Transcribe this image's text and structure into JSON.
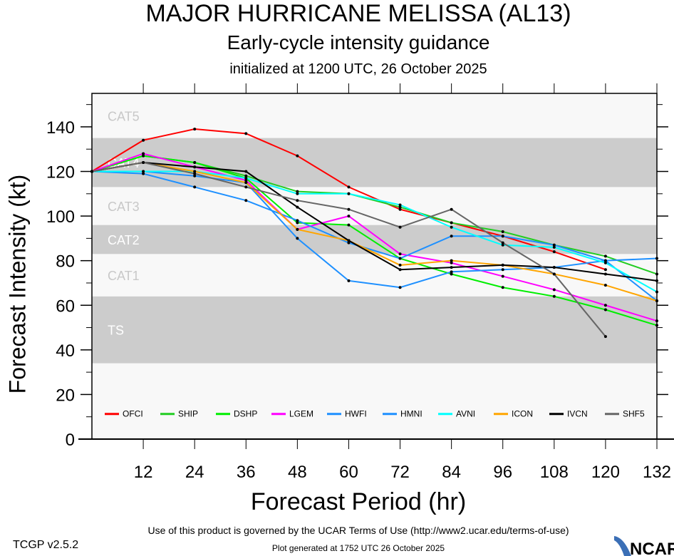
{
  "header": {
    "title": "MAJOR HURRICANE MELISSA (AL13)",
    "subtitle": "Early-cycle intensity guidance",
    "initialized": "initialized at 1200 UTC, 26 October 2025"
  },
  "footer": {
    "terms": "Use of this product is governed by the UCAR Terms of Use (http://www2.ucar.edu/terms-of-use)",
    "generated": "Plot generated at 1752 UTC   26 October 2025",
    "version": "TCGP v2.5.2",
    "logo_text": "NCAR"
  },
  "chart_data": {
    "type": "line",
    "xlabel": "Forecast Period (hr)",
    "ylabel": "Forecast Intensity (kt)",
    "xlim": [
      0,
      132
    ],
    "ylim": [
      0,
      155
    ],
    "xticks": [
      12,
      24,
      36,
      48,
      60,
      72,
      84,
      96,
      108,
      120,
      132
    ],
    "yticks": [
      0,
      20,
      40,
      60,
      80,
      100,
      120,
      140
    ],
    "bands": [
      {
        "label": "TS",
        "range": [
          34,
          64
        ],
        "color": "#cccccc"
      },
      {
        "label": "CAT1",
        "range": [
          64,
          83
        ],
        "color": "#f8f8f8"
      },
      {
        "label": "CAT2",
        "range": [
          83,
          96
        ],
        "color": "#cccccc"
      },
      {
        "label": "CAT3",
        "range": [
          96,
          113
        ],
        "color": "#f8f8f8"
      },
      {
        "label": "CAT4",
        "range": [
          113,
          135
        ],
        "color": "#cccccc"
      },
      {
        "label": "CAT5",
        "range": [
          135,
          155
        ],
        "color": "#f8f8f8"
      }
    ],
    "x": [
      0,
      12,
      24,
      36,
      48,
      60,
      72,
      84,
      96,
      108,
      120,
      132
    ],
    "series": [
      {
        "name": "OFCI",
        "color": "#ff0000",
        "values": [
          120,
          134,
          139,
          137,
          127,
          113,
          103,
          97,
          91,
          84,
          76,
          null
        ]
      },
      {
        "name": "SHIP",
        "color": "#22cc22",
        "values": [
          120,
          127,
          124,
          118,
          111,
          110,
          104,
          97,
          93,
          87,
          82,
          74
        ]
      },
      {
        "name": "DSHP",
        "color": "#00ee00",
        "values": [
          120,
          127,
          124,
          117,
          97,
          96,
          81,
          74,
          68,
          64,
          58,
          51
        ]
      },
      {
        "name": "LGEM",
        "color": "#ff00ff",
        "values": [
          120,
          128,
          122,
          116,
          94,
          100,
          83,
          79,
          73,
          67,
          60,
          53
        ]
      },
      {
        "name": "HWFI",
        "color": "#1e90ff",
        "values": [
          120,
          119,
          113,
          107,
          98,
          88,
          81,
          91,
          91,
          87,
          80,
          62
        ]
      },
      {
        "name": "HMNI",
        "color": "#1e90ff",
        "values": [
          120,
          120,
          118,
          115,
          90,
          71,
          68,
          75,
          76,
          77,
          80,
          81
        ]
      },
      {
        "name": "AVNI",
        "color": "#00ffff",
        "values": [
          120,
          120,
          120,
          117,
          110,
          110,
          105,
          95,
          87,
          86,
          79,
          66
        ]
      },
      {
        "name": "ICON",
        "color": "#ffa500",
        "values": [
          120,
          124,
          120,
          115,
          94,
          89,
          78,
          80,
          78,
          74,
          69,
          62
        ]
      },
      {
        "name": "IVCN",
        "color": "#000000",
        "values": [
          120,
          124,
          122,
          120,
          104,
          89,
          76,
          77,
          78,
          77,
          74,
          71
        ]
      },
      {
        "name": "SHF5",
        "color": "#666666",
        "values": [
          120,
          124,
          119,
          113,
          107,
          103,
          95,
          103,
          88,
          74,
          46,
          null
        ]
      }
    ]
  }
}
